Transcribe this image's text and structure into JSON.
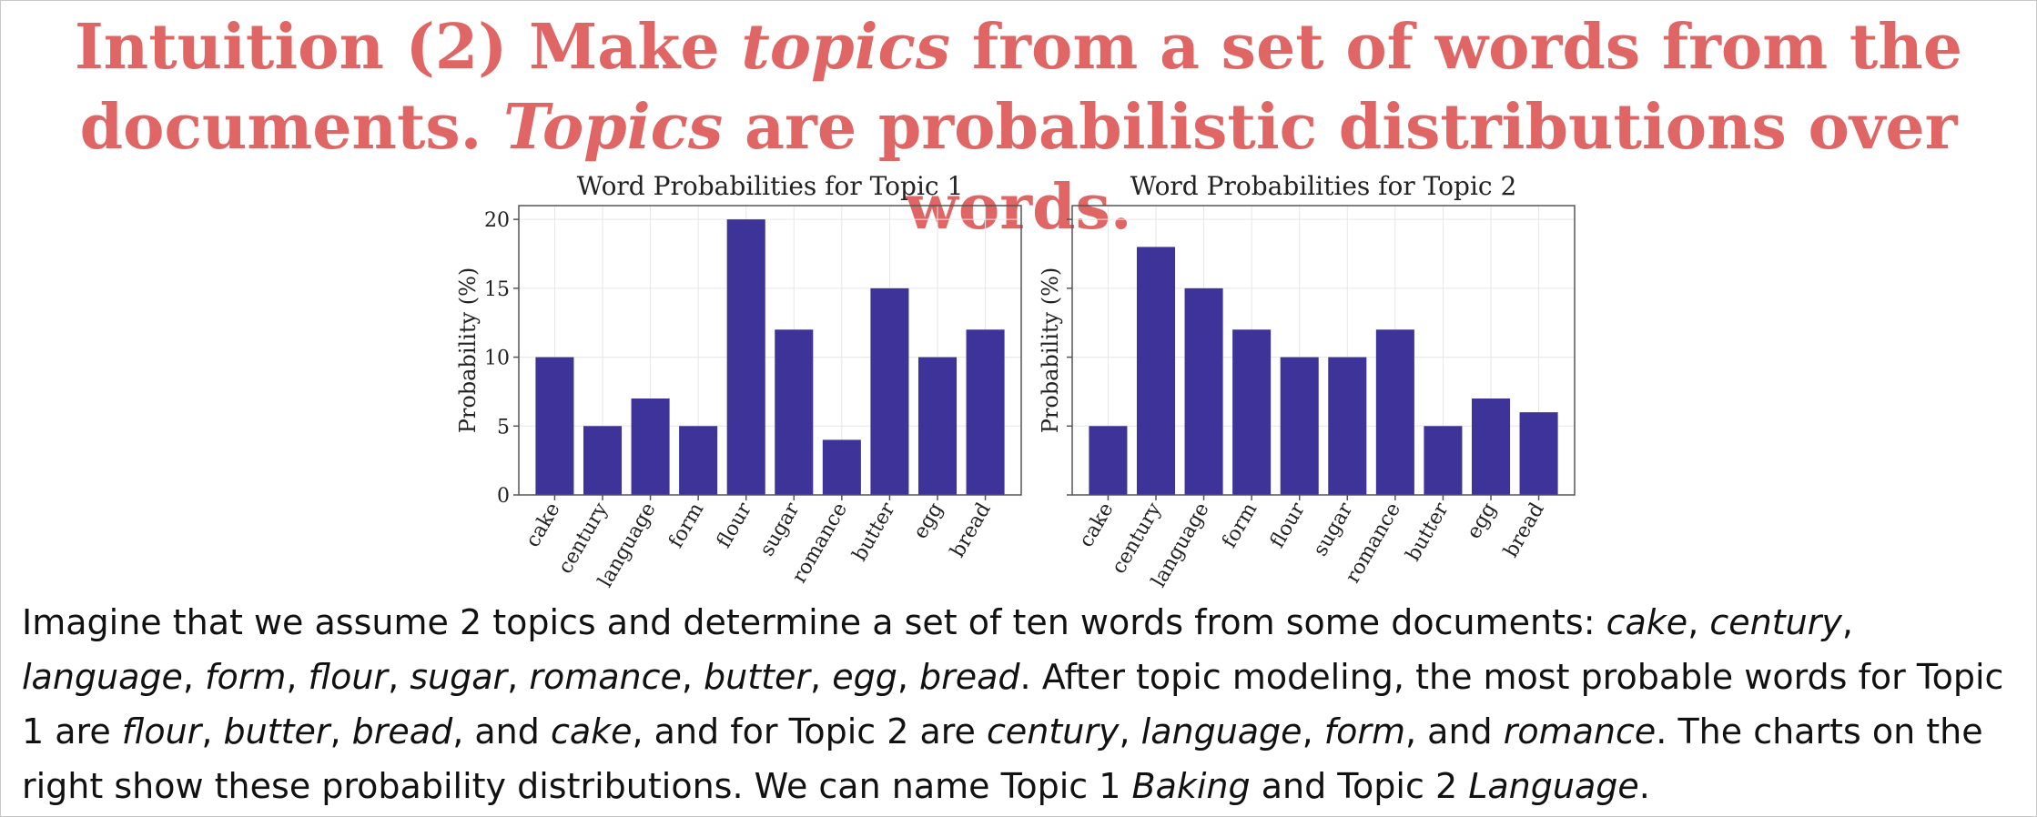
{
  "title": {
    "line1_a": "Intuition (2) Make ",
    "line1_em": "topics",
    "line1_b": " from a set of words from the",
    "line2_a": "documents. ",
    "line2_em": "Topics",
    "line2_b": " are probabilistic distributions over words."
  },
  "chart_data": [
    {
      "type": "bar",
      "title": "Word Probabilities for Topic 1",
      "xlabel": "",
      "ylabel": "Probability (%)",
      "categories": [
        "cake",
        "century",
        "language",
        "form",
        "flour",
        "sugar",
        "romance",
        "butter",
        "egg",
        "bread"
      ],
      "values": [
        10,
        5,
        7,
        5,
        20,
        12,
        4,
        15,
        10,
        12
      ],
      "ylim": [
        0,
        21
      ],
      "yticks": [
        0,
        5,
        10,
        15,
        20
      ],
      "show_ytick_labels": true,
      "grid": true,
      "bar_color": "#3d3399"
    },
    {
      "type": "bar",
      "title": "Word Probabilities for Topic 2",
      "xlabel": "",
      "ylabel": "Probability (%)",
      "categories": [
        "cake",
        "century",
        "language",
        "form",
        "flour",
        "sugar",
        "romance",
        "butter",
        "egg",
        "bread"
      ],
      "values": [
        5,
        18,
        15,
        12,
        10,
        10,
        12,
        5,
        7,
        6
      ],
      "ylim": [
        0,
        21
      ],
      "yticks": [
        0,
        5,
        10,
        15,
        20
      ],
      "show_ytick_labels": false,
      "grid": true,
      "bar_color": "#3d3399"
    }
  ],
  "paragraph": {
    "s1": "Imagine that we assume 2 topics and determine a set of ten words from some documents: ",
    "w_cake": "cake",
    "w_century": "century",
    "w_language": "language",
    "w_form": "form",
    "w_flour": "flour",
    "w_sugar": "sugar",
    "w_romance": "romance",
    "w_butter": "butter",
    "w_egg": "egg",
    "w_bread": "bread",
    "sep": ", ",
    "s2": ". After topic modeling, the most probable words for Topic 1 are ",
    "and": ", and ",
    "s3": ", and for Topic 2 are ",
    "s4": ". The charts on the right show these probability distributions. We can name Topic 1 ",
    "baking": "Baking",
    "s5": " and Topic 2 ",
    "language_name": "Language",
    "end": "."
  },
  "colors": {
    "title": "#e06666",
    "bar": "#3d3399",
    "grid": "#e6e6e6"
  }
}
